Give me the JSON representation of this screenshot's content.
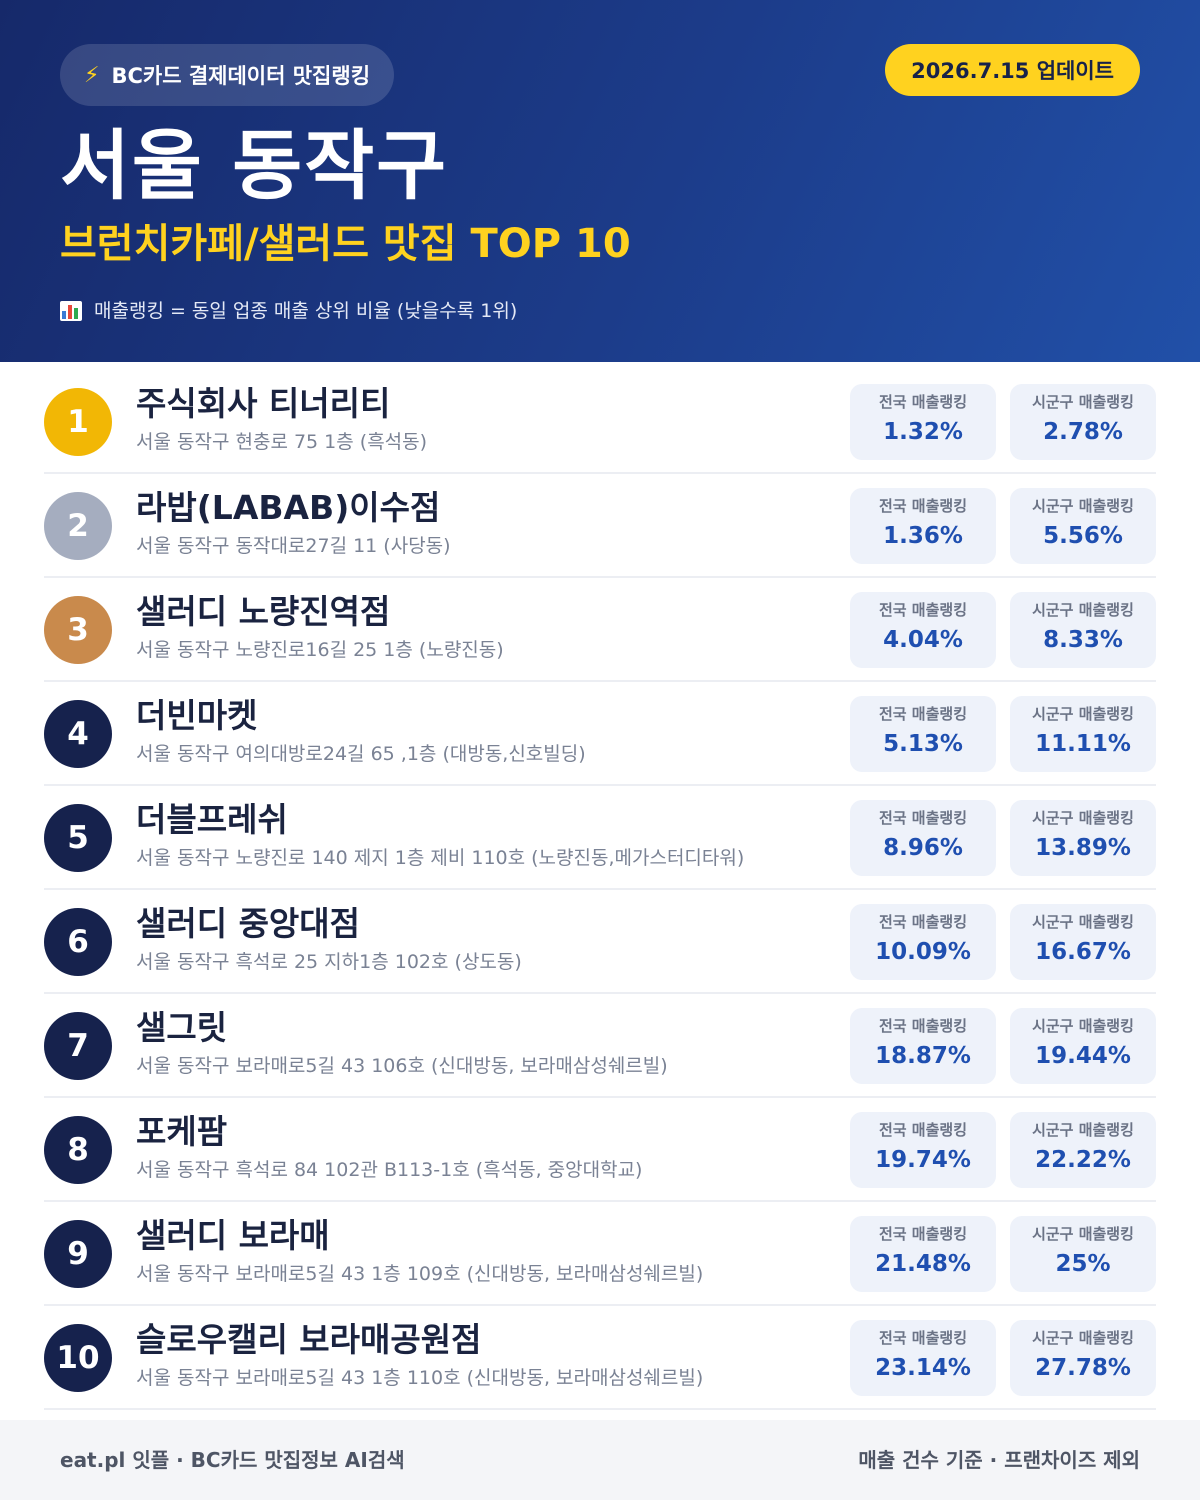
{
  "header": {
    "badge": "BC카드 결제데이터 맛집랭킹",
    "badge_icon": "lightning-icon",
    "update": "2026.7.15 업데이트",
    "region": "서울 동작구",
    "subtitle": "브런치카페/샐러드 맛집 TOP 10",
    "legend": "매출랭킹 = 동일 업종 매출 상위 비율 (낮을수록 1위)",
    "legend_icon": "bar-chart-icon"
  },
  "labels": {
    "national": "전국 매출랭킹",
    "district": "시군구 매출랭킹"
  },
  "colors": {
    "gold": "#f2b705",
    "silver": "#a5adbf",
    "bronze": "#c98a4c",
    "navy": "#16224d",
    "accent": "#ffd21f",
    "value_blue": "#1f4fb0"
  },
  "restaurants": [
    {
      "rank": "1",
      "name": "주식회사 티너리티",
      "address": "서울 동작구 현충로 75 1층 (흑석동)",
      "national": "1.32%",
      "district": "2.78%"
    },
    {
      "rank": "2",
      "name": "라밥(LABAB)이수점",
      "address": "서울 동작구 동작대로27길 11 (사당동)",
      "national": "1.36%",
      "district": "5.56%"
    },
    {
      "rank": "3",
      "name": "샐러디 노량진역점",
      "address": "서울 동작구 노량진로16길 25 1층 (노량진동)",
      "national": "4.04%",
      "district": "8.33%"
    },
    {
      "rank": "4",
      "name": "더빈마켓",
      "address": "서울 동작구 여의대방로24길 65 ,1층 (대방동,신호빌딩)",
      "national": "5.13%",
      "district": "11.11%"
    },
    {
      "rank": "5",
      "name": "더블프레쉬",
      "address": "서울 동작구 노량진로 140 제지 1층 제비 110호 (노량진동,메가스터디타워)",
      "national": "8.96%",
      "district": "13.89%"
    },
    {
      "rank": "6",
      "name": "샐러디 중앙대점",
      "address": "서울 동작구 흑석로 25 지하1층 102호 (상도동)",
      "national": "10.09%",
      "district": "16.67%"
    },
    {
      "rank": "7",
      "name": "샐그릿",
      "address": "서울 동작구 보라매로5길 43 106호 (신대방동, 보라매삼성쉐르빌)",
      "national": "18.87%",
      "district": "19.44%"
    },
    {
      "rank": "8",
      "name": "포케팜",
      "address": "서울 동작구 흑석로 84 102관 B113-1호 (흑석동, 중앙대학교)",
      "national": "19.74%",
      "district": "22.22%"
    },
    {
      "rank": "9",
      "name": "샐러디 보라매",
      "address": "서울 동작구 보라매로5길 43 1층 109호 (신대방동, 보라매삼성쉐르빌)",
      "national": "21.48%",
      "district": "25%"
    },
    {
      "rank": "10",
      "name": "슬로우캘리 보라매공원점",
      "address": "서울 동작구 보라매로5길 43 1층 110호 (신대방동, 보라매삼성쉐르빌)",
      "national": "23.14%",
      "district": "27.78%"
    }
  ],
  "footer": {
    "left": "eat.pl 잇플 · BC카드 맛집정보 AI검색",
    "right": "매출 건수 기준 · 프랜차이즈 제외"
  }
}
